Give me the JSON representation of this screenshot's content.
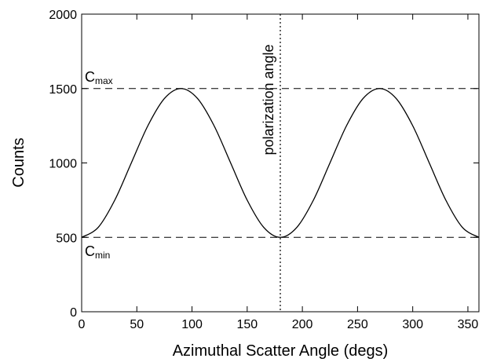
{
  "chart_data": {
    "type": "line",
    "title": "",
    "xlabel": "Azimuthal Scatter Angle (degs)",
    "ylabel": "Counts",
    "xlim": [
      0,
      360
    ],
    "ylim": [
      0,
      2000
    ],
    "xticks": [
      0,
      50,
      100,
      150,
      200,
      250,
      300,
      350
    ],
    "yticks": [
      0,
      500,
      1000,
      1500,
      2000
    ],
    "grid": false,
    "legend": "none",
    "series": [
      {
        "x": [
          0,
          15,
          30,
          45,
          60,
          75,
          90,
          105,
          120,
          135,
          150,
          165,
          180,
          195,
          210,
          225,
          240,
          255,
          270,
          285,
          300,
          315,
          330,
          345,
          360
        ],
        "y": [
          500,
          567,
          750,
          1000,
          1250,
          1433,
          1500,
          1433,
          1250,
          1000,
          750,
          567,
          500,
          567,
          750,
          1000,
          1250,
          1433,
          1500,
          1433,
          1250,
          1000,
          750,
          567,
          500
        ],
        "style": "solid",
        "color": "#000000"
      }
    ],
    "reference_lines": [
      {
        "orientation": "horizontal",
        "value": 1500,
        "style": "dashed"
      },
      {
        "orientation": "horizontal",
        "value": 500,
        "style": "dashed"
      },
      {
        "orientation": "vertical",
        "value": 180,
        "style": "dotted"
      }
    ],
    "annotations": {
      "cmax": {
        "main": "C",
        "sub": "max"
      },
      "cmin": {
        "main": "C",
        "sub": "min"
      },
      "polarization": "polarization angle"
    }
  }
}
